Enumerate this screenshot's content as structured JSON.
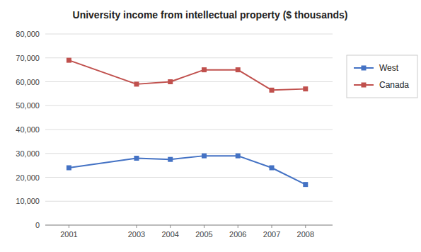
{
  "chart_data": {
    "type": "line",
    "title": "University income from intellectual property ($ thousands)",
    "x": [
      2001,
      2003,
      2004,
      2005,
      2006,
      2007,
      2008
    ],
    "xlim": [
      2000.3,
      2008.8
    ],
    "xticks": [
      2001,
      2003,
      2004,
      2005,
      2006,
      2007,
      2008
    ],
    "series": [
      {
        "name": "West",
        "color": "#4472C4",
        "marker": "square",
        "values": [
          24000,
          28000,
          27500,
          29000,
          29000,
          24000,
          17000
        ]
      },
      {
        "name": "Canada",
        "color": "#C0504D",
        "marker": "square",
        "values": [
          69000,
          59000,
          60000,
          65000,
          65000,
          56500,
          57000
        ]
      }
    ],
    "ylim": [
      0,
      80000
    ],
    "yticks": [
      0,
      {
        "value": 10000,
        "label": "10,000"
      },
      {
        "value": 20000,
        "label": "20,000"
      },
      {
        "value": 30000,
        "label": "30,000"
      },
      {
        "value": 40000,
        "label": "40,000"
      },
      {
        "value": 50000,
        "label": "50,000"
      },
      {
        "value": 60000,
        "label": "60,000"
      },
      {
        "value": 70000,
        "label": "70,000"
      },
      {
        "value": 80000,
        "label": "80,000"
      }
    ],
    "grid": true,
    "legend": "right"
  }
}
